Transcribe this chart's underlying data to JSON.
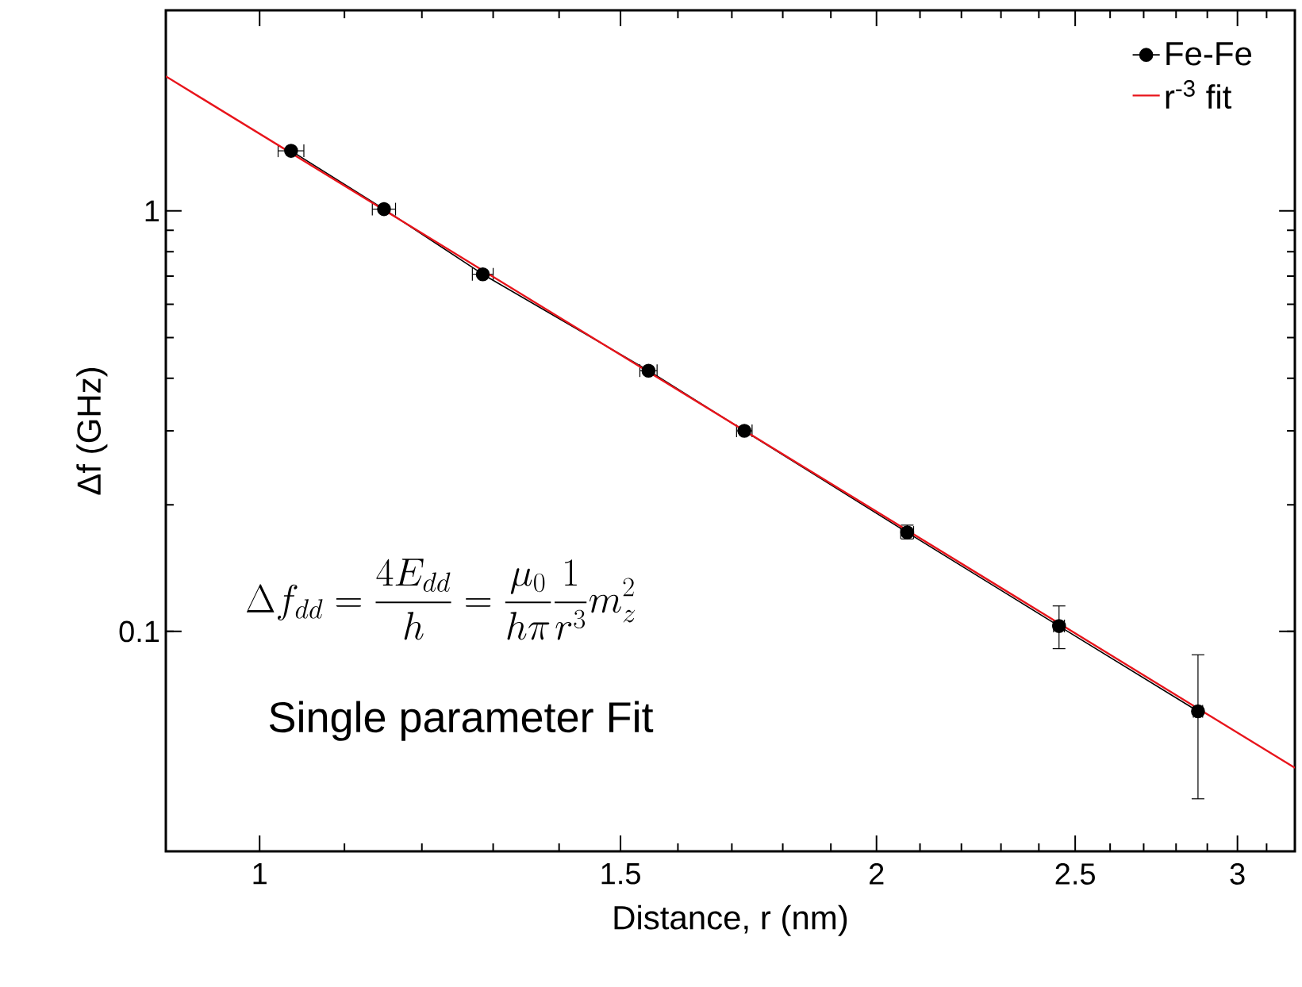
{
  "chart_data": {
    "type": "line",
    "xlabel": "Distance, r (nm)",
    "ylabel": "Δf (GHz)",
    "log": "xy",
    "xlim": [
      0.9,
      3.2
    ],
    "ylim": [
      0.03,
      3
    ],
    "xticks": [
      1,
      1.5,
      2,
      2.5,
      3
    ],
    "yticks": [
      0.1,
      1
    ],
    "legend": "top right",
    "grid": false,
    "series": [
      {
        "name": "Fe-Fe",
        "color": "#000000",
        "marker": "circle",
        "x": [
          1.036,
          1.15,
          1.285,
          1.548,
          1.724,
          2.07,
          2.455,
          2.87
        ],
        "values": [
          1.39,
          1.01,
          0.707,
          0.417,
          0.3,
          0.172,
          0.103,
          0.0646
        ],
        "errors": [
          null,
          null,
          null,
          null,
          null,
          [
            0.166,
            0.179
          ],
          [
            0.091,
            0.115
          ],
          [
            0.04,
            0.088
          ]
        ],
        "xerrors": [
          0.015,
          0.015,
          0.015,
          0.015,
          0.015,
          0.015,
          0.015,
          0.015
        ]
      },
      {
        "name": "r$^{-3}$ fit",
        "color": "#e8141b",
        "marker": "none",
        "x": [
          0.9,
          3.2
        ],
        "values": [
          2.09,
          0.0474
        ]
      }
    ],
    "annotations": [
      "\\Delta f_{dd} = \\frac{4E_{dd}}{h} = \\frac{\\mu_0}{h\\pi}\\frac{1}{r^3}m_z^2",
      "Single parameter Fit"
    ]
  }
}
